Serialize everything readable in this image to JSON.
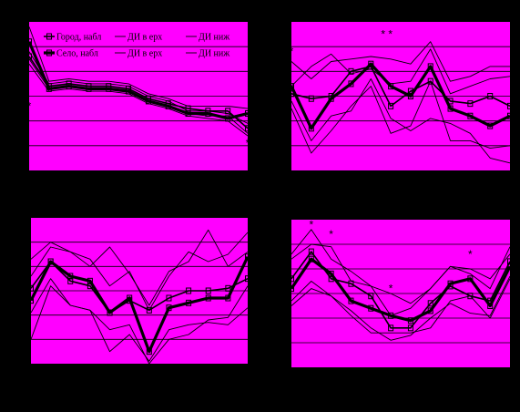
{
  "colors": {
    "background": "#000000",
    "plot_bg": "#ff00ff",
    "grid": "#000000",
    "line": "#000000"
  },
  "legend": {
    "items": [
      {
        "label": "Город, набл",
        "style": "thin-square"
      },
      {
        "label": "Село, набл",
        "style": "bold-square"
      },
      {
        "label": "ДИ в ерх",
        "style": "thin"
      },
      {
        "label": "ДИ в ерх",
        "style": "thin"
      },
      {
        "label": "ДИ ниж",
        "style": "thin"
      },
      {
        "label": "ДИ ниж",
        "style": "thin"
      }
    ]
  },
  "chart_data": [
    {
      "type": "line",
      "ylim": [
        0,
        6
      ],
      "grid": true,
      "x": [
        1,
        2,
        3,
        4,
        5,
        6,
        7,
        8,
        9,
        10,
        11,
        12
      ],
      "series": [
        {
          "values": [
            4.6,
            3.4,
            3.5,
            3.4,
            3.4,
            3.3,
            2.9,
            2.7,
            2.5,
            2.4,
            2.4,
            1.7
          ]
        },
        {
          "values": [
            5.2,
            3.3,
            3.4,
            3.3,
            3.3,
            3.2,
            2.8,
            2.6,
            2.3,
            2.3,
            2.1,
            2.3
          ]
        },
        {
          "values": [
            5.8,
            3.6,
            3.7,
            3.6,
            3.6,
            3.5,
            3.1,
            2.9,
            2.6,
            2.6,
            2.6,
            2.5
          ]
        },
        {
          "values": [
            4.3,
            3.2,
            3.3,
            3.2,
            3.2,
            3.1,
            2.7,
            2.5,
            2.2,
            2.1,
            2.0,
            1.4
          ]
        },
        {
          "values": [
            4.8,
            3.5,
            3.6,
            3.5,
            3.5,
            3.4,
            3.0,
            2.8,
            2.4,
            2.4,
            2.3,
            1.9
          ]
        },
        {
          "values": [
            4.5,
            3.3,
            3.4,
            3.3,
            3.3,
            3.2,
            2.8,
            2.6,
            2.3,
            2.2,
            2.2,
            1.5
          ]
        }
      ],
      "annotations": [
        {
          "text": "*",
          "x": 1,
          "y": 2.6
        },
        {
          "text": "*",
          "x": 12,
          "y": 1.1
        }
      ]
    },
    {
      "type": "line",
      "ylim": [
        0,
        6
      ],
      "grid": true,
      "x": [
        1,
        2,
        3,
        4,
        5,
        6,
        7,
        8,
        9,
        10,
        11,
        12
      ],
      "series": [
        {
          "values": [
            3.1,
            2.9,
            3.0,
            4.0,
            4.2,
            2.6,
            3.2,
            3.6,
            2.8,
            2.7,
            3.0,
            2.6
          ]
        },
        {
          "values": [
            3.4,
            1.7,
            2.9,
            3.5,
            4.3,
            3.4,
            3.0,
            4.2,
            2.5,
            2.2,
            1.8,
            2.2
          ]
        },
        {
          "values": [
            4.4,
            3.7,
            4.4,
            4.5,
            4.6,
            4.5,
            4.3,
            5.2,
            3.6,
            3.8,
            4.2,
            4.2
          ]
        },
        {
          "values": [
            3.4,
            4.2,
            4.7,
            3.9,
            4.1,
            3.5,
            3.6,
            4.9,
            3.1,
            3.4,
            3.7,
            3.8
          ]
        },
        {
          "values": [
            2.5,
            0.7,
            1.6,
            2.6,
            3.4,
            1.5,
            1.8,
            3.6,
            1.2,
            1.2,
            0.9,
            1.0
          ]
        },
        {
          "values": [
            2.8,
            1.2,
            2.2,
            2.4,
            3.7,
            2.1,
            1.6,
            2.1,
            1.9,
            1.5,
            0.5,
            0.3
          ]
        }
      ],
      "annotations": [
        {
          "text": "*",
          "x": 1,
          "y": 4.8
        },
        {
          "text": "* *",
          "x": 5.8,
          "y": 5.5
        }
      ]
    },
    {
      "type": "line",
      "ylim": [
        0,
        6
      ],
      "grid": true,
      "x": [
        1,
        2,
        3,
        4,
        5,
        6,
        7,
        8,
        9,
        10,
        11,
        12
      ],
      "series": [
        {
          "values": [
            3.1,
            4.2,
            3.4,
            3.2,
            2.1,
            2.6,
            2.2,
            2.7,
            3.0,
            3.0,
            3.1,
            3.5
          ]
        },
        {
          "values": [
            2.6,
            4.2,
            3.6,
            3.4,
            2.1,
            2.7,
            0.5,
            2.3,
            2.5,
            2.7,
            2.7,
            4.4
          ]
        },
        {
          "values": [
            4.3,
            5.0,
            4.6,
            4.3,
            3.2,
            3.8,
            2.2,
            3.6,
            4.6,
            4.2,
            4.5,
            5.4
          ]
        },
        {
          "values": [
            3.6,
            4.8,
            4.6,
            4.0,
            4.8,
            3.7,
            2.4,
            3.8,
            4.2,
            5.5,
            4.0,
            4.6
          ]
        },
        {
          "values": [
            1.0,
            3.2,
            2.4,
            2.2,
            0.5,
            1.2,
            0.1,
            1.4,
            1.6,
            1.7,
            1.6,
            2.3
          ]
        },
        {
          "values": [
            2.1,
            3.5,
            2.4,
            2.2,
            1.4,
            1.6,
            0.0,
            1.0,
            1.2,
            1.8,
            1.9,
            3.2
          ]
        }
      ],
      "annotations": []
    },
    {
      "type": "line",
      "ylim": [
        0,
        6
      ],
      "grid": true,
      "x": [
        1,
        2,
        3,
        4,
        5,
        6,
        7,
        8,
        9,
        10,
        11,
        12
      ],
      "series": [
        {
          "values": [
            3.6,
            4.7,
            3.6,
            3.4,
            2.9,
            1.6,
            1.6,
            2.6,
            3.3,
            2.9,
            2.7,
            4.3
          ]
        },
        {
          "values": [
            3.2,
            4.4,
            3.8,
            2.7,
            2.4,
            2.1,
            1.9,
            2.3,
            3.4,
            3.6,
            2.5,
            4.1
          ]
        },
        {
          "values": [
            4.6,
            5.6,
            4.4,
            3.9,
            3.3,
            2.1,
            2.4,
            3.2,
            4.1,
            3.8,
            3.2,
            4.9
          ]
        },
        {
          "values": [
            4.4,
            5.0,
            4.9,
            3.5,
            3.3,
            3.0,
            2.6,
            3.2,
            4.1,
            4.0,
            3.6,
            4.6
          ]
        },
        {
          "values": [
            2.7,
            3.5,
            2.9,
            2.3,
            1.6,
            1.1,
            1.3,
            2.0,
            2.6,
            2.2,
            2.1,
            3.7
          ]
        },
        {
          "values": [
            2.5,
            3.2,
            2.9,
            2.1,
            1.4,
            1.4,
            1.4,
            1.6,
            2.7,
            2.9,
            2.0,
            3.6
          ]
        }
      ],
      "annotations": [
        {
          "text": "*",
          "x": 2,
          "y": 5.8
        },
        {
          "text": "*",
          "x": 3,
          "y": 5.4
        },
        {
          "text": "*",
          "x": 6,
          "y": 3.2
        },
        {
          "text": "*",
          "x": 10,
          "y": 4.6
        }
      ]
    }
  ]
}
